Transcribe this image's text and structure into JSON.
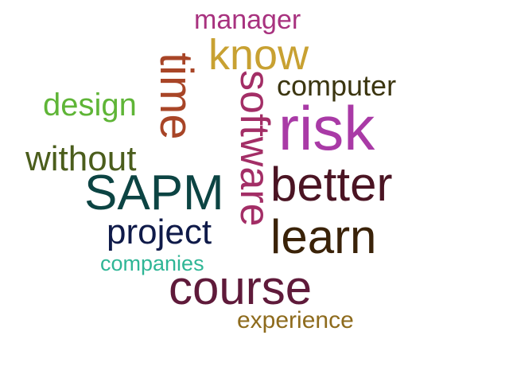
{
  "words": [
    {
      "key": "manager",
      "text": "manager",
      "color": "#a8327f"
    },
    {
      "key": "know",
      "text": "know",
      "color": "#c8a132"
    },
    {
      "key": "time",
      "text": "time",
      "color": "#a84527"
    },
    {
      "key": "software",
      "text": "software",
      "color": "#a32e66"
    },
    {
      "key": "computer",
      "text": "computer",
      "color": "#3b3510"
    },
    {
      "key": "risk",
      "text": "risk",
      "color": "#a93aa6"
    },
    {
      "key": "design",
      "text": "design",
      "color": "#5fb537"
    },
    {
      "key": "without",
      "text": "without",
      "color": "#4b5d1c"
    },
    {
      "key": "sapm",
      "text": "SAPM",
      "color": "#0c4443"
    },
    {
      "key": "better",
      "text": "better",
      "color": "#4b1423"
    },
    {
      "key": "project",
      "text": "project",
      "color": "#0f1a49"
    },
    {
      "key": "learn",
      "text": "learn",
      "color": "#3a2208"
    },
    {
      "key": "companies",
      "text": "companies",
      "color": "#2fb696"
    },
    {
      "key": "course",
      "text": "course",
      "color": "#5f1a3a"
    },
    {
      "key": "experience",
      "text": "experience",
      "color": "#8e6b1d"
    }
  ]
}
